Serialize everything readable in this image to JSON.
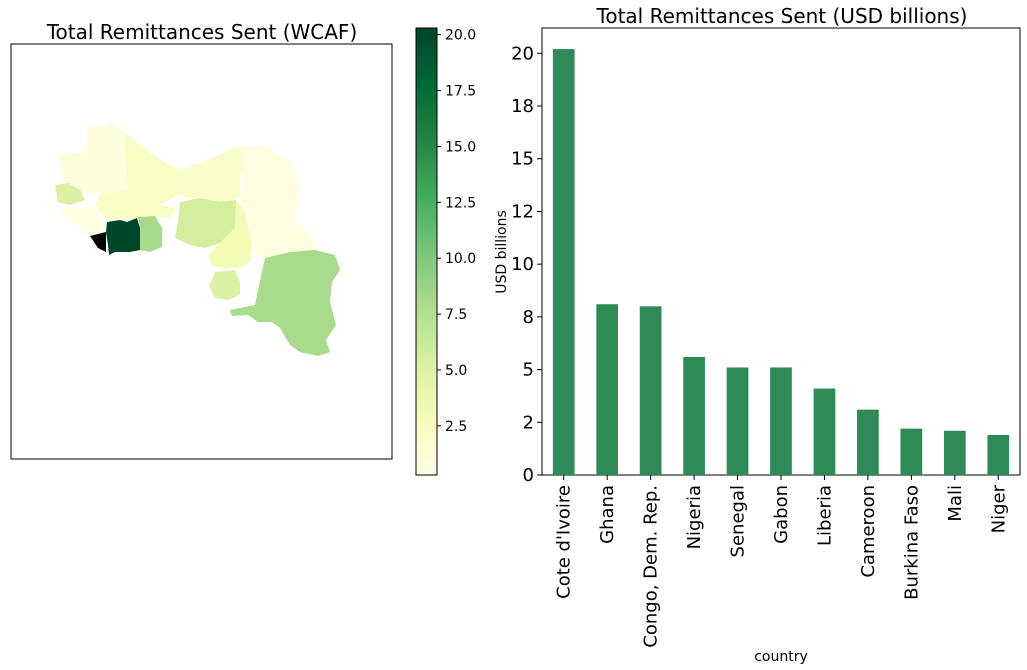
{
  "chart_data": [
    {
      "type": "choropleth",
      "title": "Total Remittances Sent (WCAF)",
      "colormap": "YlGn",
      "colorbar": {
        "range": [
          0.3,
          20.3
        ],
        "ticks": [
          2.5,
          5.0,
          7.5,
          10.0,
          12.5,
          15.0,
          17.5,
          20.0
        ],
        "tick_labels": [
          "2.5",
          "5.0",
          "7.5",
          "10.0",
          "12.5",
          "15.0",
          "17.5",
          "20.0"
        ]
      },
      "regions": [
        {
          "id": "mauritania",
          "value": 0.8
        },
        {
          "id": "mali",
          "value": 2.1
        },
        {
          "id": "niger",
          "value": 1.9
        },
        {
          "id": "chad",
          "value": 0.5
        },
        {
          "id": "senegal",
          "value": 5.1
        },
        {
          "id": "guinea",
          "value": 0.6
        },
        {
          "id": "burkina-faso",
          "value": 2.2
        },
        {
          "id": "cote-divoire",
          "value": 20.2
        },
        {
          "id": "ghana",
          "value": 8.1
        },
        {
          "id": "nigeria",
          "value": 5.6
        },
        {
          "id": "cameroon",
          "value": 3.1
        },
        {
          "id": "car",
          "value": 0.4
        },
        {
          "id": "gabon",
          "value": 5.1
        },
        {
          "id": "congo-dem-rep",
          "value": 8.0
        }
      ]
    },
    {
      "type": "bar",
      "title": "Total Remittances Sent (USD billions)",
      "xlabel": "country",
      "ylabel": "USD billions",
      "categories": [
        "Cote d'Ivoire",
        "Ghana",
        "Congo, Dem. Rep.",
        "Nigeria",
        "Senegal",
        "Gabon",
        "Liberia",
        "Cameroon",
        "Burkina Faso",
        "Mali",
        "Niger"
      ],
      "values": [
        20.2,
        8.1,
        8.0,
        5.6,
        5.1,
        5.1,
        4.1,
        3.1,
        2.2,
        2.1,
        1.9
      ],
      "ylim": [
        0,
        21.2
      ],
      "yticks": [
        0,
        2.5,
        5,
        7.5,
        10,
        12.5,
        15,
        17.5,
        20
      ],
      "ytick_labels": [
        "0",
        "2",
        "5",
        "8",
        "10",
        "12",
        "15",
        "18",
        "20"
      ],
      "color": "#2e8b57"
    }
  ]
}
